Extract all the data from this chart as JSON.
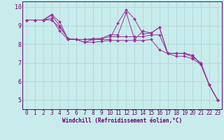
{
  "xlabel": "Windchill (Refroidissement éolien,°C)",
  "background_color": "#c8ecec",
  "grid_color": "#b0d8d8",
  "line_color": "#993399",
  "xlim": [
    -0.5,
    23.5
  ],
  "ylim": [
    4.5,
    10.3
  ],
  "xticks": [
    0,
    1,
    2,
    3,
    4,
    5,
    6,
    7,
    8,
    9,
    10,
    11,
    12,
    13,
    14,
    15,
    16,
    17,
    18,
    19,
    20,
    21,
    22,
    23
  ],
  "yticks": [
    5,
    6,
    7,
    8,
    9,
    10
  ],
  "series": [
    [
      9.3,
      9.3,
      9.3,
      9.4,
      8.7,
      8.25,
      8.25,
      8.25,
      8.25,
      8.25,
      8.25,
      9.15,
      9.85,
      9.35,
      8.55,
      8.6,
      8.9,
      7.5,
      7.5,
      7.5,
      7.4,
      6.9,
      5.8,
      5.0
    ],
    [
      9.3,
      9.3,
      9.3,
      9.6,
      9.2,
      8.25,
      8.25,
      8.25,
      8.3,
      8.3,
      8.5,
      8.5,
      9.7,
      8.25,
      8.7,
      8.6,
      8.9,
      7.5,
      7.5,
      7.5,
      7.4,
      6.9,
      5.8,
      5.0
    ],
    [
      9.3,
      9.3,
      9.3,
      9.55,
      9.0,
      8.3,
      8.25,
      8.1,
      8.25,
      8.3,
      8.4,
      8.4,
      8.4,
      8.4,
      8.4,
      8.5,
      8.5,
      7.5,
      7.5,
      7.5,
      7.3,
      7.0,
      5.8,
      5.0
    ],
    [
      9.3,
      9.3,
      9.3,
      9.3,
      8.9,
      8.3,
      8.25,
      8.1,
      8.1,
      8.15,
      8.2,
      8.2,
      8.2,
      8.2,
      8.2,
      8.25,
      7.7,
      7.5,
      7.35,
      7.35,
      7.2,
      6.9,
      5.8,
      5.0
    ]
  ],
  "tick_fontsize": 5.5,
  "xlabel_fontsize": 5.5,
  "tick_color": "#660066",
  "spine_color": "#660066"
}
